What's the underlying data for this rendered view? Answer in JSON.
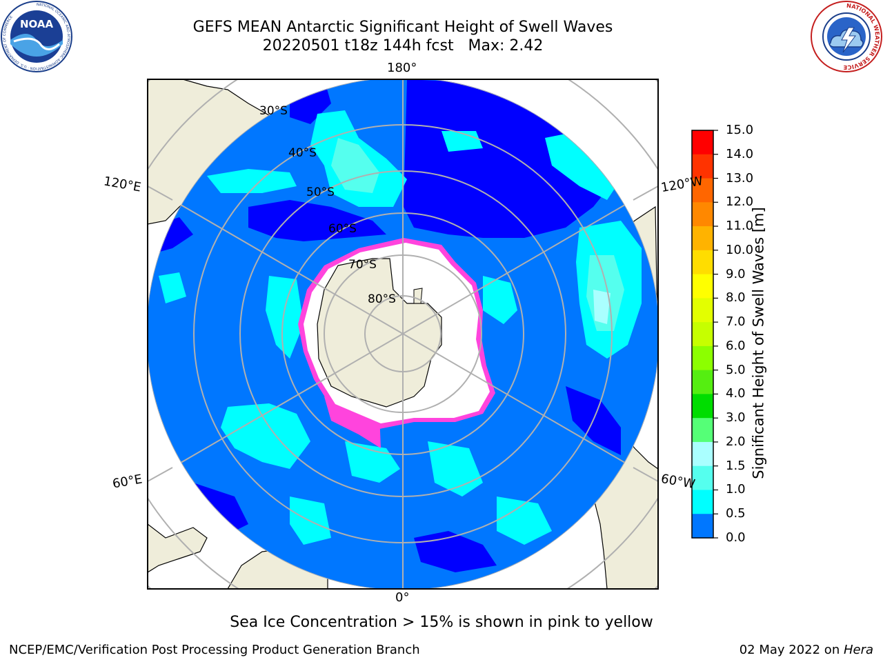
{
  "header": {
    "title_line1": "GEFS MEAN Antarctic Significant Height of Swell Waves",
    "title_line2": "20220501 t18z 144h fcst   Max: 2.42"
  },
  "logos": {
    "noaa": {
      "icon": "noaa-logo",
      "text": "NOAA",
      "ring_text": "NATIONAL OCEANIC AND ATMOSPHERIC ADMINISTRATION · U.S. DEPARTMENT OF COMMERCE"
    },
    "nws": {
      "icon": "nws-logo",
      "ring_text": "NATIONAL WEATHER SERVICE"
    }
  },
  "map": {
    "projection": "south-polar-stereographic",
    "longitude_labels": [
      "180°",
      "120°E",
      "120°W",
      "60°E",
      "60°W",
      "0°"
    ],
    "latitude_labels": [
      "30°S",
      "40°S",
      "50°S",
      "60°S",
      "70°S",
      "80°S"
    ],
    "colors": {
      "land": "#efedda",
      "coast": "#000000",
      "grid": "#b0b0b0",
      "ice": "#ff44dd"
    }
  },
  "colorbar": {
    "title": "Significant Height of Swell Waves [m]",
    "ticks": [
      "15.0",
      "14.0",
      "13.0",
      "12.0",
      "11.0",
      "10.0",
      "9.0",
      "8.0",
      "7.0",
      "6.0",
      "5.0",
      "4.0",
      "3.0",
      "2.0",
      "1.5",
      "1.0",
      "0.5",
      "0.0"
    ],
    "colors": [
      "#ff0000",
      "#ff3300",
      "#ff6600",
      "#ff8800",
      "#ffb300",
      "#ffdd00",
      "#ffff00",
      "#e3ff00",
      "#c6ff00",
      "#8cff00",
      "#55ee11",
      "#00dd00",
      "#55ff77",
      "#aaffff",
      "#55ffee",
      "#00ffff",
      "#0077ff",
      "#0000ff"
    ]
  },
  "footer": {
    "note": "Sea Ice Concentration > 15% is shown in pink to yellow",
    "credit": "NCEP/EMC/Verification Post Processing Product Generation Branch",
    "date": "02 May 2022 on ",
    "host": "Hera"
  }
}
